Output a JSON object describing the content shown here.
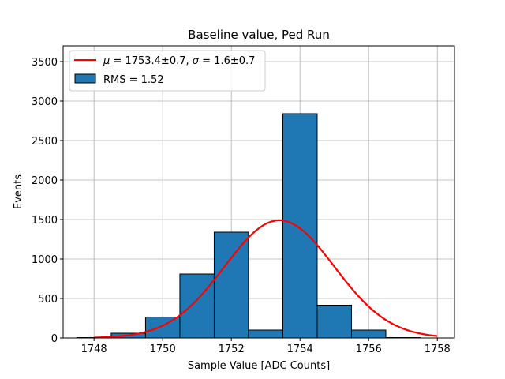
{
  "chart_data": {
    "type": "bar",
    "title": "Baseline value, Ped Run",
    "xlabel": "Sample Value [ADC Counts]",
    "ylabel": "Events",
    "xlim": [
      1747.1,
      1758.5
    ],
    "ylim": [
      0,
      3700
    ],
    "xticks": [
      1748,
      1750,
      1752,
      1754,
      1756,
      1758
    ],
    "yticks": [
      0,
      500,
      1000,
      1500,
      2000,
      2500,
      3000,
      3500
    ],
    "grid": true,
    "legend_position": "top-left",
    "histogram": {
      "name": "RMS = 1.52",
      "color": "#1f77b4",
      "edge_color": "#000000",
      "bins": [
        {
          "left": 1747.5,
          "right": 1748.5,
          "count": 5
        },
        {
          "left": 1748.5,
          "right": 1749.5,
          "count": 60
        },
        {
          "left": 1749.5,
          "right": 1750.5,
          "count": 265
        },
        {
          "left": 1750.5,
          "right": 1751.5,
          "count": 810
        },
        {
          "left": 1751.5,
          "right": 1752.5,
          "count": 1340
        },
        {
          "left": 1752.5,
          "right": 1753.5,
          "count": 100
        },
        {
          "left": 1753.5,
          "right": 1754.5,
          "count": 2840
        },
        {
          "left": 1754.5,
          "right": 1755.5,
          "count": 415
        },
        {
          "left": 1755.5,
          "right": 1756.5,
          "count": 100
        },
        {
          "left": 1756.5,
          "right": 1757.5,
          "count": 5
        }
      ]
    },
    "fit": {
      "name": "μ = 1753.4±0.7, σ = 1.6±0.7",
      "legend_parts": {
        "mu_symbol": "μ",
        "mu_text": " = 1753.4±0.7, ",
        "sigma_symbol": "σ",
        "sigma_text": " = 1.6±0.7"
      },
      "color": "#ff0000",
      "mu": 1753.4,
      "sigma": 1.6,
      "amplitude": 1490,
      "x_range": [
        1748,
        1758
      ]
    }
  }
}
